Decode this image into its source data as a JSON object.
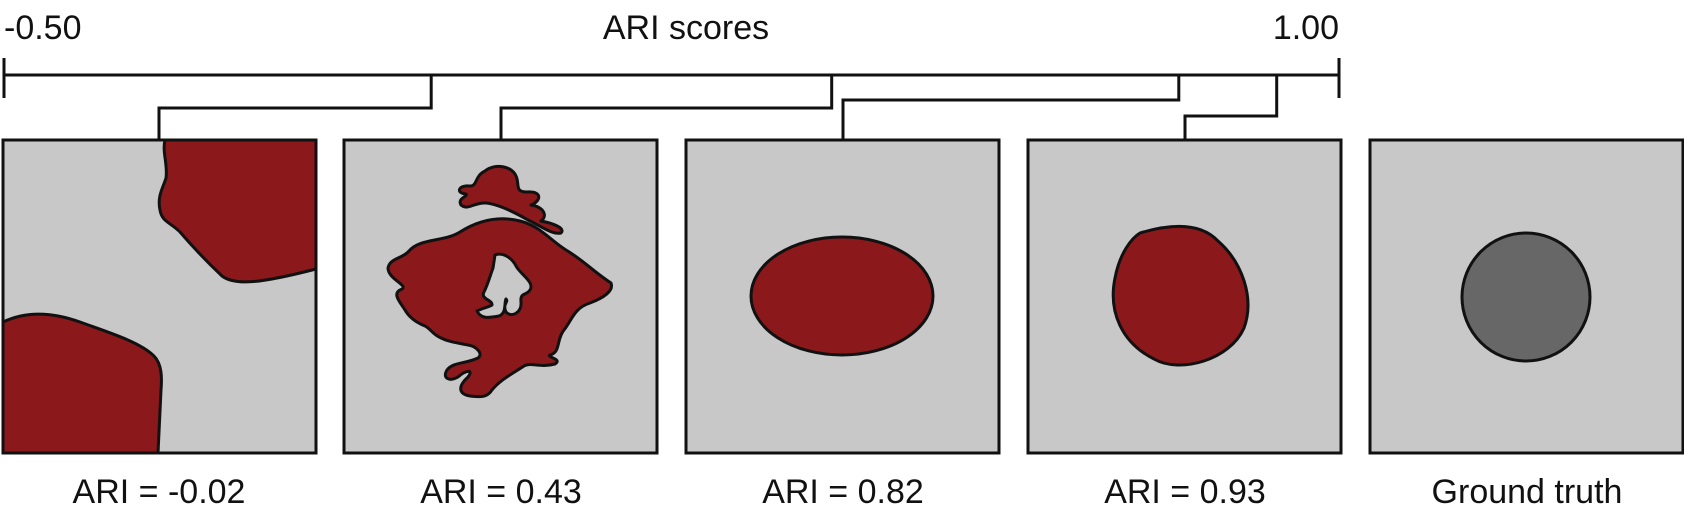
{
  "axis": {
    "title": "ARI scores",
    "min_label": "-0.50",
    "max_label": "1.00",
    "min": -0.5,
    "max": 1.0
  },
  "panels": [
    {
      "label": "ARI = -0.02",
      "score": -0.02
    },
    {
      "label": "ARI = 0.43",
      "score": 0.43
    },
    {
      "label": "ARI = 0.82",
      "score": 0.82
    },
    {
      "label": "ARI = 0.93",
      "score": 0.93
    },
    {
      "label": "Ground truth"
    }
  ],
  "colors": {
    "prediction": "#8b181b",
    "ground_truth": "#666766",
    "background": "#c8c8c8",
    "outline": "#111111"
  }
}
